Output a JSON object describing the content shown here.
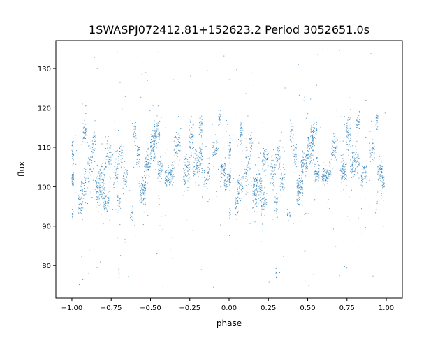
{
  "chart_data": {
    "type": "scatter",
    "title": "1SWASPJ072412.81+152623.2 Period 3052651.0s",
    "xlabel": "phase",
    "ylabel": "flux",
    "xlim": [
      -1.102,
      1.102
    ],
    "ylim": [
      71.7,
      137.1
    ],
    "xticks": [
      -1.0,
      -0.75,
      -0.5,
      -0.25,
      0.0,
      0.25,
      0.5,
      0.75,
      1.0
    ],
    "xtick_labels": [
      "−1.00",
      "−0.75",
      "−0.50",
      "−0.25",
      "0.00",
      "0.25",
      "0.50",
      "0.75",
      "1.00"
    ],
    "yticks": [
      80,
      90,
      100,
      110,
      120,
      130
    ],
    "ytick_labels": [
      "80",
      "90",
      "100",
      "110",
      "120",
      "130"
    ],
    "grid": false,
    "color": "#1f77b4",
    "note": "phase-folded light curve, repeated for phase -1..0 and 0..1; clusters listed as [phase_center, flux_center, phase_spread, flux_spread, count]",
    "clusters": [
      [
        -0.995,
        102,
        0.006,
        1.0,
        40
      ],
      [
        -0.995,
        109,
        0.006,
        1.5,
        40
      ],
      [
        -0.995,
        93,
        0.004,
        0.8,
        15
      ],
      [
        -0.95,
        95,
        0.01,
        1.5,
        30
      ],
      [
        -0.93,
        100,
        0.02,
        2.0,
        60
      ],
      [
        -0.92,
        114,
        0.01,
        1.5,
        40
      ],
      [
        -0.88,
        105,
        0.02,
        2.5,
        50
      ],
      [
        -0.86,
        111,
        0.01,
        2.0,
        30
      ],
      [
        -0.82,
        100,
        0.03,
        2.5,
        160
      ],
      [
        -0.78,
        96,
        0.02,
        1.5,
        60
      ],
      [
        -0.77,
        107,
        0.02,
        2.0,
        60
      ],
      [
        -0.72,
        104,
        0.015,
        2.0,
        50
      ],
      [
        -0.7,
        96,
        0.01,
        1.2,
        20
      ],
      [
        -0.69,
        108,
        0.015,
        1.5,
        40
      ],
      [
        -0.7,
        78,
        0.003,
        0.8,
        8
      ],
      [
        -0.66,
        102,
        0.015,
        2.0,
        40
      ],
      [
        -0.62,
        93,
        0.01,
        0.8,
        15
      ],
      [
        -0.6,
        113,
        0.01,
        1.5,
        30
      ],
      [
        -0.58,
        108,
        0.01,
        1.5,
        30
      ],
      [
        -0.55,
        99,
        0.02,
        2.0,
        100
      ],
      [
        -0.52,
        106,
        0.02,
        1.5,
        80
      ],
      [
        -0.48,
        110,
        0.02,
        2.0,
        100
      ],
      [
        -0.46,
        114,
        0.02,
        1.5,
        50
      ],
      [
        -0.44,
        104,
        0.015,
        1.5,
        50
      ],
      [
        -0.38,
        103,
        0.03,
        1.2,
        100
      ],
      [
        -0.33,
        110,
        0.02,
        2.0,
        60
      ],
      [
        -0.27,
        104,
        0.02,
        2.0,
        80
      ],
      [
        -0.24,
        113,
        0.015,
        2.5,
        60
      ],
      [
        -0.2,
        106,
        0.03,
        2.0,
        100
      ],
      [
        -0.18,
        116,
        0.01,
        1.5,
        30
      ],
      [
        -0.14,
        103,
        0.02,
        1.5,
        50
      ],
      [
        -0.09,
        109,
        0.015,
        1.5,
        40
      ],
      [
        -0.06,
        117,
        0.008,
        1.0,
        20
      ],
      [
        -0.04,
        104,
        0.015,
        1.5,
        60
      ],
      [
        -0.02,
        101,
        0.01,
        1.5,
        30
      ]
    ],
    "outliers_per_half": 160,
    "outlier_flux_range": [
      74,
      135
    ]
  }
}
